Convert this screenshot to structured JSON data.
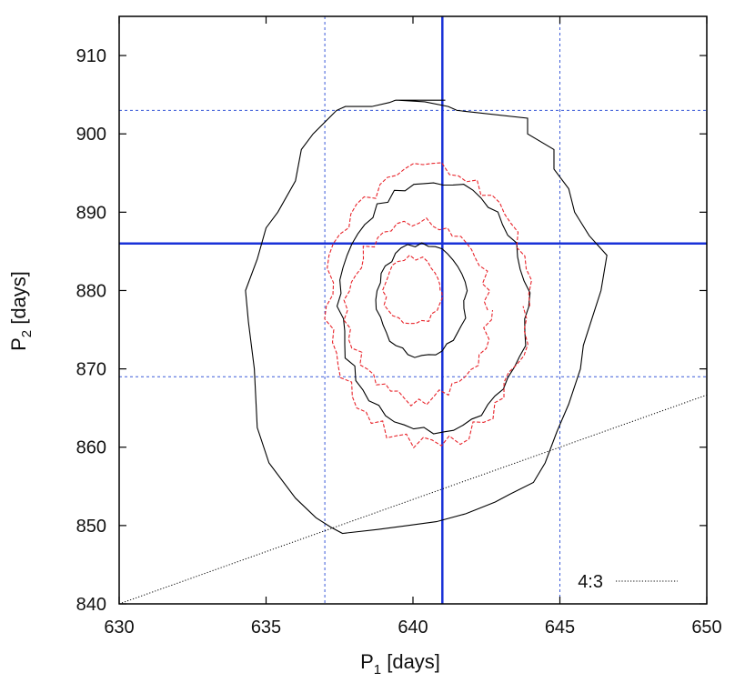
{
  "chart_data": {
    "type": "line",
    "title": "",
    "xlabel": "P",
    "xlabel_sub": "1",
    "xlabel_unit": " [days]",
    "ylabel": "P",
    "ylabel_sub": "2",
    "ylabel_unit": " [days]",
    "xlim": [
      630,
      650
    ],
    "ylim": [
      840,
      915
    ],
    "xticks": [
      630,
      635,
      640,
      645,
      650
    ],
    "yticks": [
      840,
      850,
      860,
      870,
      880,
      890,
      900,
      910
    ],
    "grid": false,
    "legend_position": "bottom-right",
    "colors": {
      "black": "#000000",
      "red": "#e8232a",
      "blue": "#1a32d8",
      "blue_dashed": "#3a5ad8"
    },
    "reference_lines": {
      "vertical_solid": 641,
      "vertical_dashed": [
        637,
        645
      ],
      "horizontal_solid": 886,
      "horizontal_dashed": [
        869,
        903
      ]
    },
    "series": [
      {
        "name": "4:3",
        "style": "dotted",
        "x": [
          630,
          650
        ],
        "y": [
          840,
          866.67
        ]
      },
      {
        "style": "solid-black",
        "x": [
          639.4,
          639.4,
          640.6,
          641.1,
          640.8,
          639.9,
          639.5,
          640.4,
          641.2,
          641.5,
          643.9,
          643.9,
          644.8,
          644.8,
          645.3,
          645.5,
          646.0,
          646.6,
          646.4,
          646.1,
          645.8,
          645.7,
          645.3,
          644.9,
          644.5,
          644.1,
          643.3,
          642.8,
          641.8,
          640.8,
          639.8,
          638.8,
          637.6,
          637.2,
          636.7,
          636.0,
          635.1,
          634.7,
          634.6,
          634.4,
          634.3,
          634.7,
          635.0,
          635.4,
          636.0,
          636.2,
          636.6,
          637.4,
          637.7,
          638.4,
          638.6,
          639.2,
          639.4
        ],
        "y": [
          904.3,
          904.3,
          904.3,
          904.3,
          904.3,
          904.3,
          904.3,
          904.1,
          903.5,
          903.0,
          902.0,
          900.0,
          898.0,
          895.5,
          893.0,
          890.0,
          887.0,
          884.5,
          880.0,
          876.5,
          873.0,
          870.0,
          865.5,
          862.0,
          858.0,
          855.5,
          854.0,
          853.0,
          851.5,
          850.5,
          850.0,
          849.5,
          849.0,
          849.8,
          851.0,
          853.5,
          858.0,
          862.5,
          870.0,
          876.0,
          880.0,
          884.0,
          888.0,
          890.0,
          894.0,
          898.0,
          900.0,
          903.0,
          903.5,
          903.5,
          903.5,
          904.0,
          904.3
        ]
      }
    ]
  },
  "legend": {
    "label": "4:3"
  }
}
